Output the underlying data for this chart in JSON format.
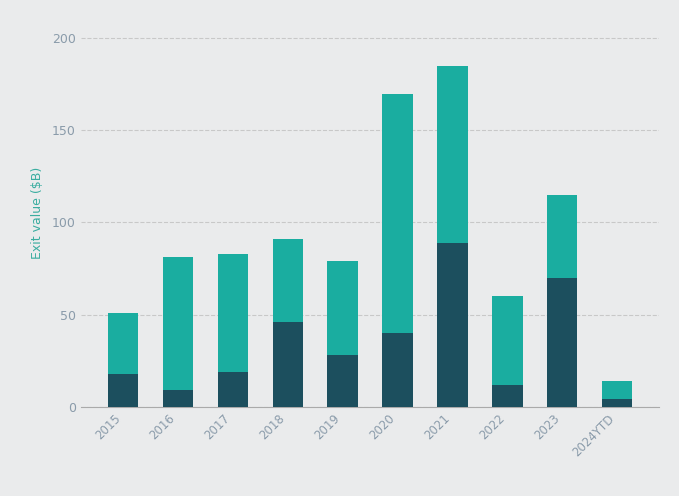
{
  "categories": [
    "2015",
    "2016",
    "2017",
    "2018",
    "2019",
    "2020",
    "2021",
    "2022",
    "2023",
    "2024YTD"
  ],
  "dark_values": [
    18,
    9,
    19,
    46,
    28,
    40,
    89,
    12,
    70,
    4
  ],
  "light_values": [
    33,
    72,
    64,
    45,
    51,
    130,
    96,
    48,
    45,
    10
  ],
  "dark_color": "#1c4f5e",
  "light_color": "#1aada0",
  "background_color": "#eaebec",
  "ylabel": "Exit value ($B)",
  "ylim": [
    0,
    210
  ],
  "yticks": [
    0,
    50,
    100,
    150,
    200
  ],
  "ytick_labels": [
    "0",
    "50",
    "100",
    "150",
    "200"
  ],
  "grid_color": "#c8c8c8",
  "bar_width": 0.55,
  "tick_color": "#8a9baa",
  "ylabel_color": "#3aada0",
  "figsize": [
    6.79,
    4.96
  ],
  "dpi": 100
}
